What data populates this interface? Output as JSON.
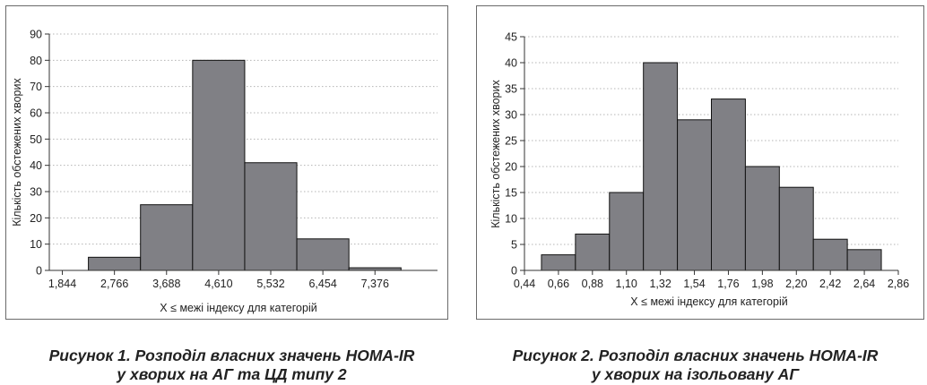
{
  "chart_data": [
    {
      "type": "bar",
      "histogram": true,
      "ylabel": "Кількість обстежених хворих",
      "xlabel": "X ≤ межі індексу для категорій",
      "yticks": [
        0,
        10,
        20,
        30,
        40,
        50,
        60,
        70,
        80,
        90
      ],
      "ylim": [
        0,
        90
      ],
      "xticks": [
        "1,844",
        "2,766",
        "3,688",
        "4,610",
        "5,532",
        "6,454",
        "7,376"
      ],
      "bins": [
        {
          "from": "2,305",
          "to": "3,227",
          "value": 5
        },
        {
          "from": "3,227",
          "to": "4,149",
          "value": 25
        },
        {
          "from": "4,149",
          "to": "5,071",
          "value": 80
        },
        {
          "from": "5,071",
          "to": "5,993",
          "value": 41
        },
        {
          "from": "5,993",
          "to": "6,915",
          "value": 12
        },
        {
          "from": "6,915",
          "to": "7,837",
          "value": 1
        }
      ],
      "values": [
        5,
        25,
        80,
        41,
        12,
        1
      ],
      "grid": true,
      "bar_color": "#808085",
      "caption_lines": [
        "Рисунок 1. Розподіл власних значень HOMA-IR",
        "у хворих на АГ та ЦД типу 2"
      ]
    },
    {
      "type": "bar",
      "histogram": true,
      "ylabel": "Кількість обстежених хворих",
      "xlabel": "X ≤ межі індексу для категорій",
      "yticks": [
        0,
        5,
        10,
        15,
        20,
        25,
        30,
        35,
        40,
        45
      ],
      "ylim": [
        0,
        45
      ],
      "xticks": [
        "0,44",
        "0,66",
        "0,88",
        "1,10",
        "1,32",
        "1,54",
        "1,76",
        "1,98",
        "2,20",
        "2,42",
        "2,64",
        "2,86"
      ],
      "bins": [
        {
          "from": "0,55",
          "to": "0,77",
          "value": 3
        },
        {
          "from": "0,77",
          "to": "0,99",
          "value": 7
        },
        {
          "from": "0,99",
          "to": "1,21",
          "value": 15
        },
        {
          "from": "1,21",
          "to": "1,43",
          "value": 40
        },
        {
          "from": "1,43",
          "to": "1,65",
          "value": 29
        },
        {
          "from": "1,65",
          "to": "1,87",
          "value": 33
        },
        {
          "from": "1,87",
          "to": "2,09",
          "value": 20
        },
        {
          "from": "2,09",
          "to": "2,31",
          "value": 16
        },
        {
          "from": "2,31",
          "to": "2,53",
          "value": 6
        },
        {
          "from": "2,53",
          "to": "2,75",
          "value": 4
        }
      ],
      "values": [
        3,
        7,
        15,
        40,
        29,
        33,
        20,
        16,
        6,
        4
      ],
      "grid": true,
      "bar_color": "#808085",
      "caption_lines": [
        "Рисунок 2. Розподіл власних значень HOMA-IR",
        "у хворих на ізольовану АГ"
      ]
    }
  ]
}
